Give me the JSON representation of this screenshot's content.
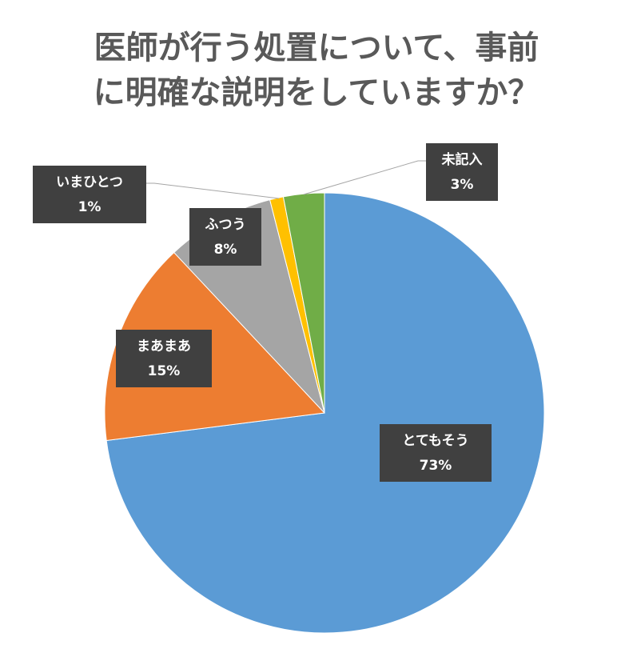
{
  "chart_data": {
    "type": "pie",
    "title": "医師が行う処置について、事前に明確な説明をしていますか？",
    "categories": [
      "とてもそう",
      "まあまあ",
      "ふつう",
      "いまひとつ",
      "未記入"
    ],
    "values": [
      73,
      15,
      8,
      1,
      3
    ],
    "value_labels": [
      "73%",
      "15%",
      "8%",
      "1%",
      "3%"
    ],
    "colors": [
      "#5b9bd5",
      "#ed7d31",
      "#a5a5a5",
      "#ffc000",
      "#70ad47"
    ]
  }
}
